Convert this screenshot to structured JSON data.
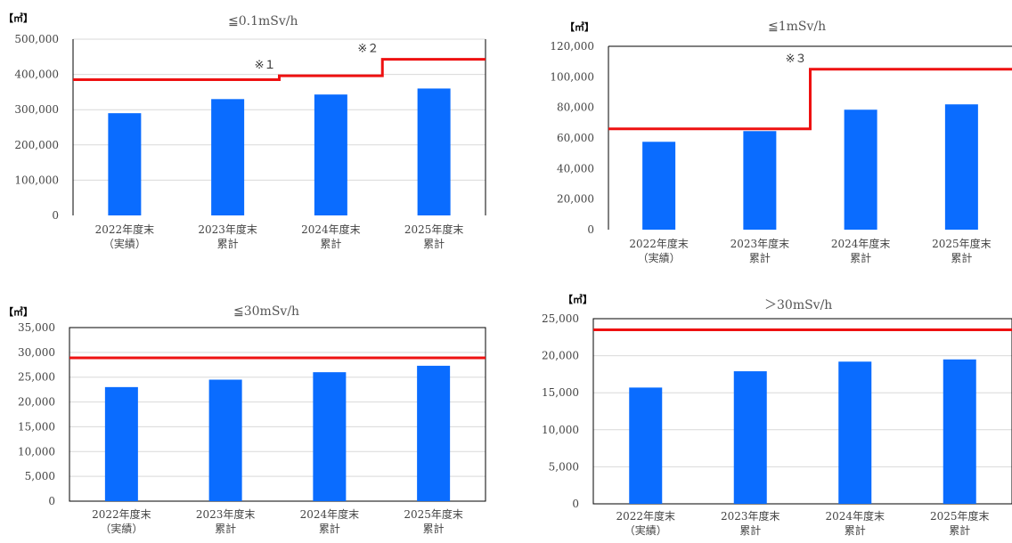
{
  "colors": {
    "bar": "#0a6cff",
    "capacity_line": "#ee1111",
    "grid": "#d9d9d9",
    "frame": "#000000"
  },
  "chart_data": [
    {
      "type": "bar",
      "title": "≦0.1mSv/h",
      "unit": "【㎥】",
      "categories": [
        [
          "2022年度末",
          "（実績）"
        ],
        [
          "2023年度末",
          "累計"
        ],
        [
          "2024年度末",
          "累計"
        ],
        [
          "2025年度末",
          "累計"
        ]
      ],
      "values": [
        290000,
        330000,
        343000,
        360000
      ],
      "ylim": [
        0,
        500000
      ],
      "ticks": [
        "0",
        "100,000",
        "200,000",
        "300,000",
        "400,000",
        "500,000"
      ],
      "tick_values": [
        0,
        100000,
        200000,
        300000,
        400000,
        500000
      ],
      "grid": true,
      "capacity_steps": [
        {
          "from": -0.5,
          "to": 1.5,
          "value": 385000
        },
        {
          "from": 1.5,
          "to": 2.5,
          "value": 396000
        },
        {
          "from": 2.5,
          "to": 4.5,
          "value": 443000
        }
      ],
      "annotations": [
        {
          "text": "※１",
          "x": 1.5,
          "y": 396000
        },
        {
          "text": "※２",
          "x": 2.5,
          "y": 443000
        }
      ]
    },
    {
      "type": "bar",
      "title": "≦1mSv/h",
      "unit": "【㎥】",
      "categories": [
        [
          "2022年度末",
          "（実績）"
        ],
        [
          "2023年度末",
          "累計"
        ],
        [
          "2024年度末",
          "累計"
        ],
        [
          "2025年度末",
          "累計"
        ]
      ],
      "values": [
        57500,
        64500,
        78500,
        82000
      ],
      "ylim": [
        0,
        120000
      ],
      "ticks": [
        "0",
        "20,000",
        "40,000",
        "60,000",
        "80,000",
        "100,000",
        "120,000"
      ],
      "tick_values": [
        0,
        20000,
        40000,
        60000,
        80000,
        100000,
        120000
      ],
      "grid": false,
      "capacity_steps": [
        {
          "from": -0.5,
          "to": 1.5,
          "value": 66000
        },
        {
          "from": 1.5,
          "to": 4.5,
          "value": 105000
        }
      ],
      "annotations": [
        {
          "text": "※３",
          "x": 1.5,
          "y": 105000
        }
      ]
    },
    {
      "type": "bar",
      "title": "≦30mSv/h",
      "unit": "【㎥】",
      "categories": [
        [
          "2022年度末",
          "（実績）"
        ],
        [
          "2023年度末",
          "累計"
        ],
        [
          "2024年度末",
          "累計"
        ],
        [
          "2025年度末",
          "累計"
        ]
      ],
      "values": [
        23000,
        24500,
        26000,
        27300
      ],
      "ylim": [
        0,
        35000
      ],
      "ticks": [
        "0",
        "5,000",
        "10,000",
        "15,000",
        "20,000",
        "25,000",
        "30,000",
        "35,000"
      ],
      "tick_values": [
        0,
        5000,
        10000,
        15000,
        20000,
        25000,
        30000,
        35000
      ],
      "grid": true,
      "capacity_steps": [
        {
          "from": -0.5,
          "to": 4.5,
          "value": 28900
        }
      ],
      "annotations": []
    },
    {
      "type": "bar",
      "title": "＞30mSv/h",
      "unit": "【㎥】",
      "categories": [
        [
          "2022年度末",
          "（実績）"
        ],
        [
          "2023年度末",
          "累計"
        ],
        [
          "2024年度末",
          "累計"
        ],
        [
          "2025年度末",
          "累計"
        ]
      ],
      "values": [
        15700,
        17900,
        19200,
        19500
      ],
      "ylim": [
        0,
        25000
      ],
      "ticks": [
        "0",
        "5,000",
        "10,000",
        "15,000",
        "20,000",
        "25,000"
      ],
      "tick_values": [
        0,
        5000,
        10000,
        15000,
        20000,
        25000
      ],
      "grid": true,
      "capacity_steps": [
        {
          "from": -0.5,
          "to": 4.5,
          "value": 23500
        }
      ],
      "annotations": []
    }
  ]
}
